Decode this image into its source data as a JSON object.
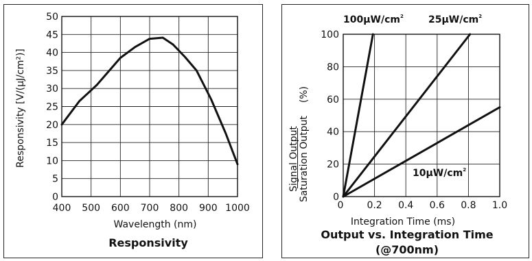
{
  "chart_data": [
    {
      "type": "line",
      "title": "Responsivity",
      "xlabel": "Wavelength (nm)",
      "ylabel": "Responsivity [V/(μJ/cm²)]",
      "xlim": [
        400,
        1000
      ],
      "ylim": [
        0,
        50
      ],
      "x_ticks": [
        400,
        500,
        600,
        700,
        800,
        900,
        1000
      ],
      "y_ticks": [
        0,
        5,
        10,
        15,
        20,
        25,
        30,
        35,
        40,
        45,
        50
      ],
      "grid": true,
      "series": [
        {
          "x": [
            400,
            460,
            520,
            600,
            650,
            700,
            745,
            780,
            820,
            860,
            910,
            960,
            1000
          ],
          "y": [
            20,
            26.5,
            31,
            38.5,
            41.5,
            43.8,
            44.1,
            42.2,
            38.8,
            35,
            27,
            17.5,
            9
          ]
        }
      ]
    },
    {
      "type": "line",
      "title": "Output vs. Integration Time",
      "subtitle": "(@700nm)",
      "xlabel": "Integration Time (ms)",
      "ylabel_line1": "Signal Output",
      "ylabel_line2": "Saturation Output",
      "ylabel_unit": "(%)",
      "xlim": [
        0,
        1.0
      ],
      "ylim": [
        0,
        100
      ],
      "x_ticks": [
        "0",
        "0.2",
        "0.4",
        "0.6",
        "0.8",
        "1.0"
      ],
      "y_ticks": [
        "0",
        "20",
        "40",
        "60",
        "80",
        "100"
      ],
      "grid": true,
      "series": [
        {
          "name": "100μW/cm²",
          "x": [
            0,
            0.19
          ],
          "y": [
            0,
            100
          ]
        },
        {
          "name": "25μW/cm²",
          "x": [
            0,
            0.81
          ],
          "y": [
            0,
            100
          ]
        },
        {
          "name": "10μW/cm²",
          "x": [
            0,
            1.0
          ],
          "y": [
            0,
            55
          ]
        }
      ]
    }
  ]
}
